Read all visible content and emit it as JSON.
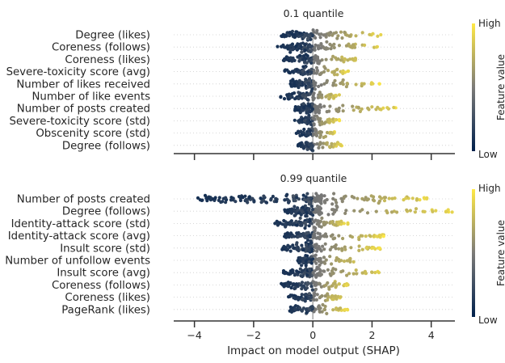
{
  "chart_data": [
    {
      "type": "scatter",
      "subtype": "shap-beeswarm",
      "title": "0.1 quantile",
      "features": [
        {
          "name": "Degree (likes)",
          "range": [
            -1.2,
            2.3
          ]
        },
        {
          "name": "Coreness (follows)",
          "range": [
            -1.3,
            2.4
          ]
        },
        {
          "name": "Coreness (likes)",
          "range": [
            -1.2,
            1.6
          ]
        },
        {
          "name": "Severe-toxicity score (avg)",
          "range": [
            -1.1,
            1.2
          ]
        },
        {
          "name": "Number of likes received",
          "range": [
            -0.9,
            2.3
          ]
        },
        {
          "name": "Number of like events",
          "range": [
            -1.2,
            0.9
          ]
        },
        {
          "name": "Number of posts created",
          "range": [
            -0.7,
            2.8
          ]
        },
        {
          "name": "Severe-toxicity score (std)",
          "range": [
            -0.7,
            0.9
          ]
        },
        {
          "name": "Obscenity score (std)",
          "range": [
            -0.6,
            0.8
          ]
        },
        {
          "name": "Degree (follows)",
          "range": [
            -0.5,
            1.0
          ]
        }
      ],
      "show_xticklabels": false
    },
    {
      "type": "scatter",
      "subtype": "shap-beeswarm",
      "title": "0.99 quantile",
      "features": [
        {
          "name": "Number of posts created",
          "range": [
            -4.5,
            3.9
          ]
        },
        {
          "name": "Degree (follows)",
          "range": [
            -1.1,
            4.8
          ]
        },
        {
          "name": "Identity-attack score (std)",
          "range": [
            -1.7,
            1.2
          ]
        },
        {
          "name": "Identity-attack score (avg)",
          "range": [
            -1.2,
            2.4
          ]
        },
        {
          "name": "Insult score (std)",
          "range": [
            -1.2,
            2.3
          ]
        },
        {
          "name": "Number of unfollow events",
          "range": [
            -0.6,
            1.8
          ]
        },
        {
          "name": "Insult score (avg)",
          "range": [
            -1.1,
            2.3
          ]
        },
        {
          "name": "Coreness (follows)",
          "range": [
            -1.2,
            1.2
          ]
        },
        {
          "name": "Coreness (likes)",
          "range": [
            -0.9,
            1.0
          ]
        },
        {
          "name": "PageRank (likes)",
          "range": [
            -0.9,
            1.2
          ]
        }
      ],
      "show_xticklabels": true
    }
  ],
  "shared": {
    "xlabel": "Impact on model output (SHAP)",
    "xlim": [
      -4.7,
      4.8
    ],
    "xticks": [
      -4,
      -2,
      0,
      2,
      4
    ],
    "xtick_labels": [
      "−4",
      "−2",
      "0",
      "2",
      "4"
    ],
    "colorbar": {
      "title": "Feature value",
      "high_label": "High",
      "low_label": "Low"
    },
    "colors": {
      "low": "#00204c",
      "mid": "#7c7b78",
      "high": "#ffe945",
      "zero_line": "#999999",
      "row_guide": "#cccccc",
      "axis": "#333333"
    }
  }
}
